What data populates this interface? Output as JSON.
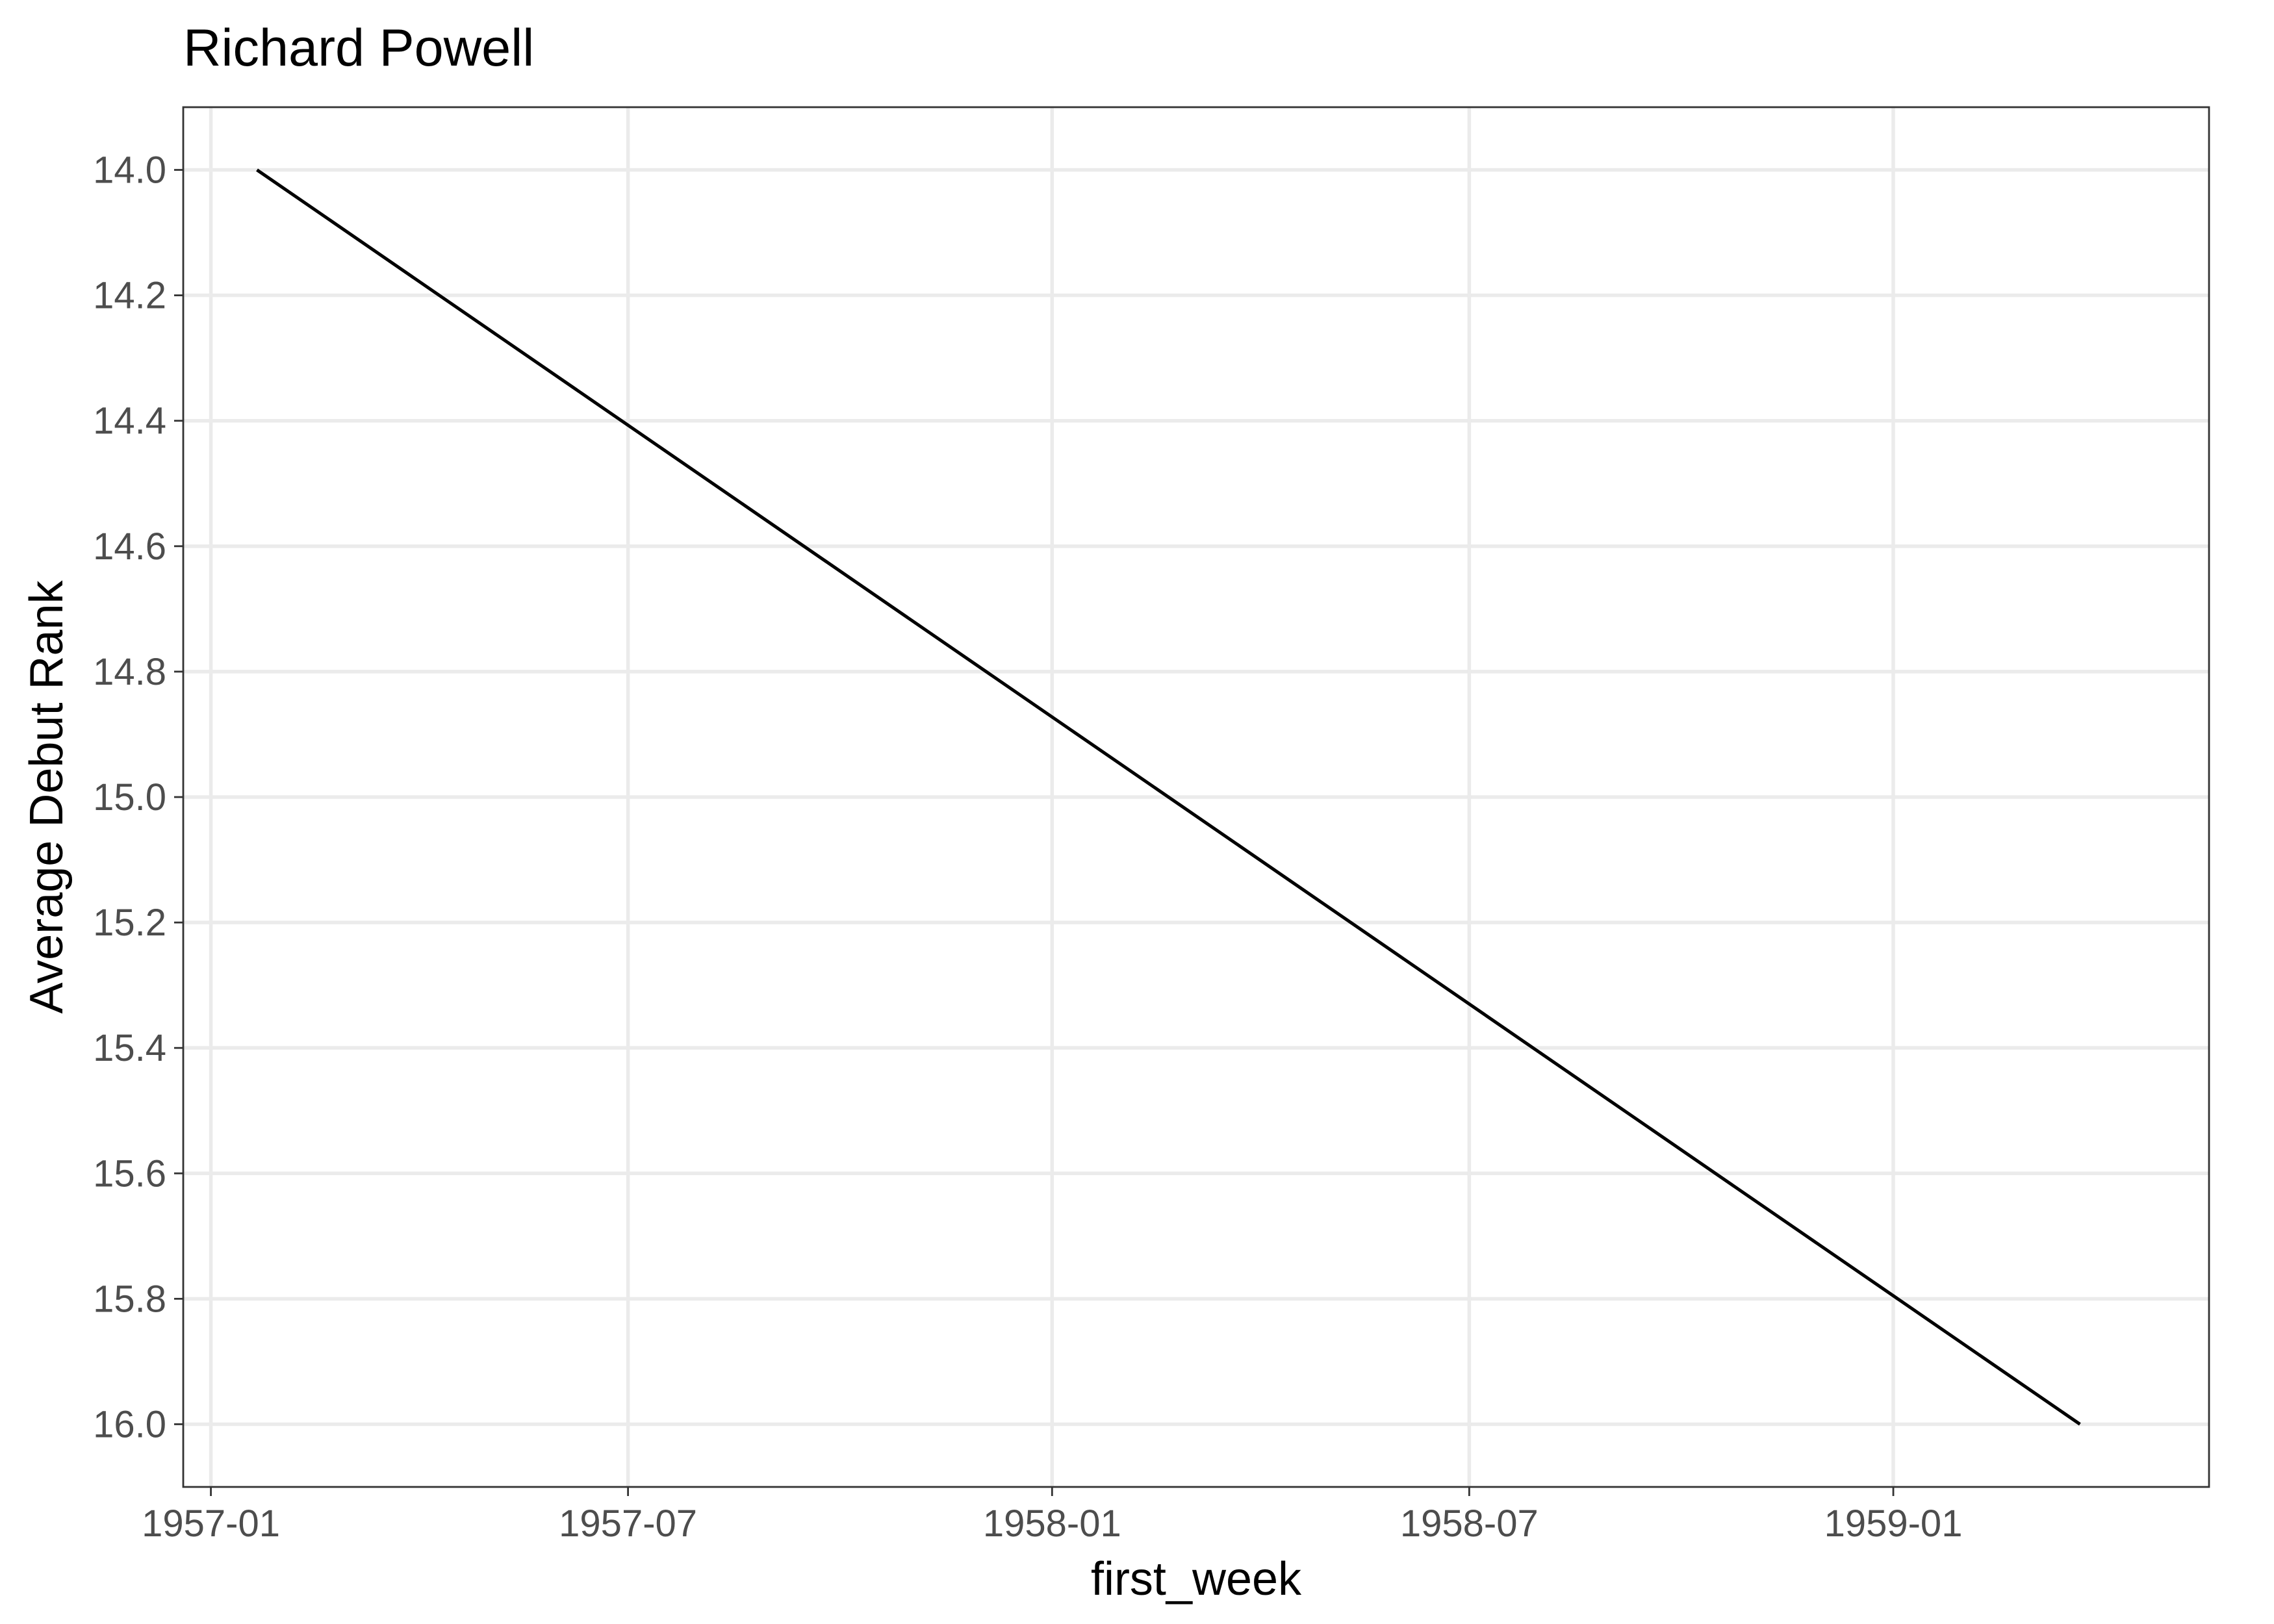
{
  "chart_data": {
    "type": "line",
    "title": "Richard Powell",
    "xlabel": "first_week",
    "ylabel": "Average Debut Rank",
    "x_type": "date",
    "xlim": [
      "1956-12-20",
      "1959-05-18"
    ],
    "ylim": [
      16.1,
      13.9
    ],
    "y_reversed": true,
    "x_ticks": [
      {
        "value": "1957-01-01",
        "label": "1957-01"
      },
      {
        "value": "1957-07-01",
        "label": "1957-07"
      },
      {
        "value": "1958-01-01",
        "label": "1958-01"
      },
      {
        "value": "1958-07-01",
        "label": "1958-07"
      },
      {
        "value": "1959-01-01",
        "label": "1959-01"
      }
    ],
    "y_ticks": [
      {
        "value": 14.0,
        "label": "14.0"
      },
      {
        "value": 14.2,
        "label": "14.2"
      },
      {
        "value": 14.4,
        "label": "14.4"
      },
      {
        "value": 14.6,
        "label": "14.6"
      },
      {
        "value": 14.8,
        "label": "14.8"
      },
      {
        "value": 15.0,
        "label": "15.0"
      },
      {
        "value": 15.2,
        "label": "15.2"
      },
      {
        "value": 15.4,
        "label": "15.4"
      },
      {
        "value": 15.6,
        "label": "15.6"
      },
      {
        "value": 15.8,
        "label": "15.8"
      },
      {
        "value": 16.0,
        "label": "16.0"
      }
    ],
    "grid": true,
    "series": [
      {
        "color": "#000000",
        "points": [
          {
            "x": "1957-01-21",
            "y": 14.0
          },
          {
            "x": "1959-03-23",
            "y": 16.0
          }
        ]
      }
    ]
  }
}
